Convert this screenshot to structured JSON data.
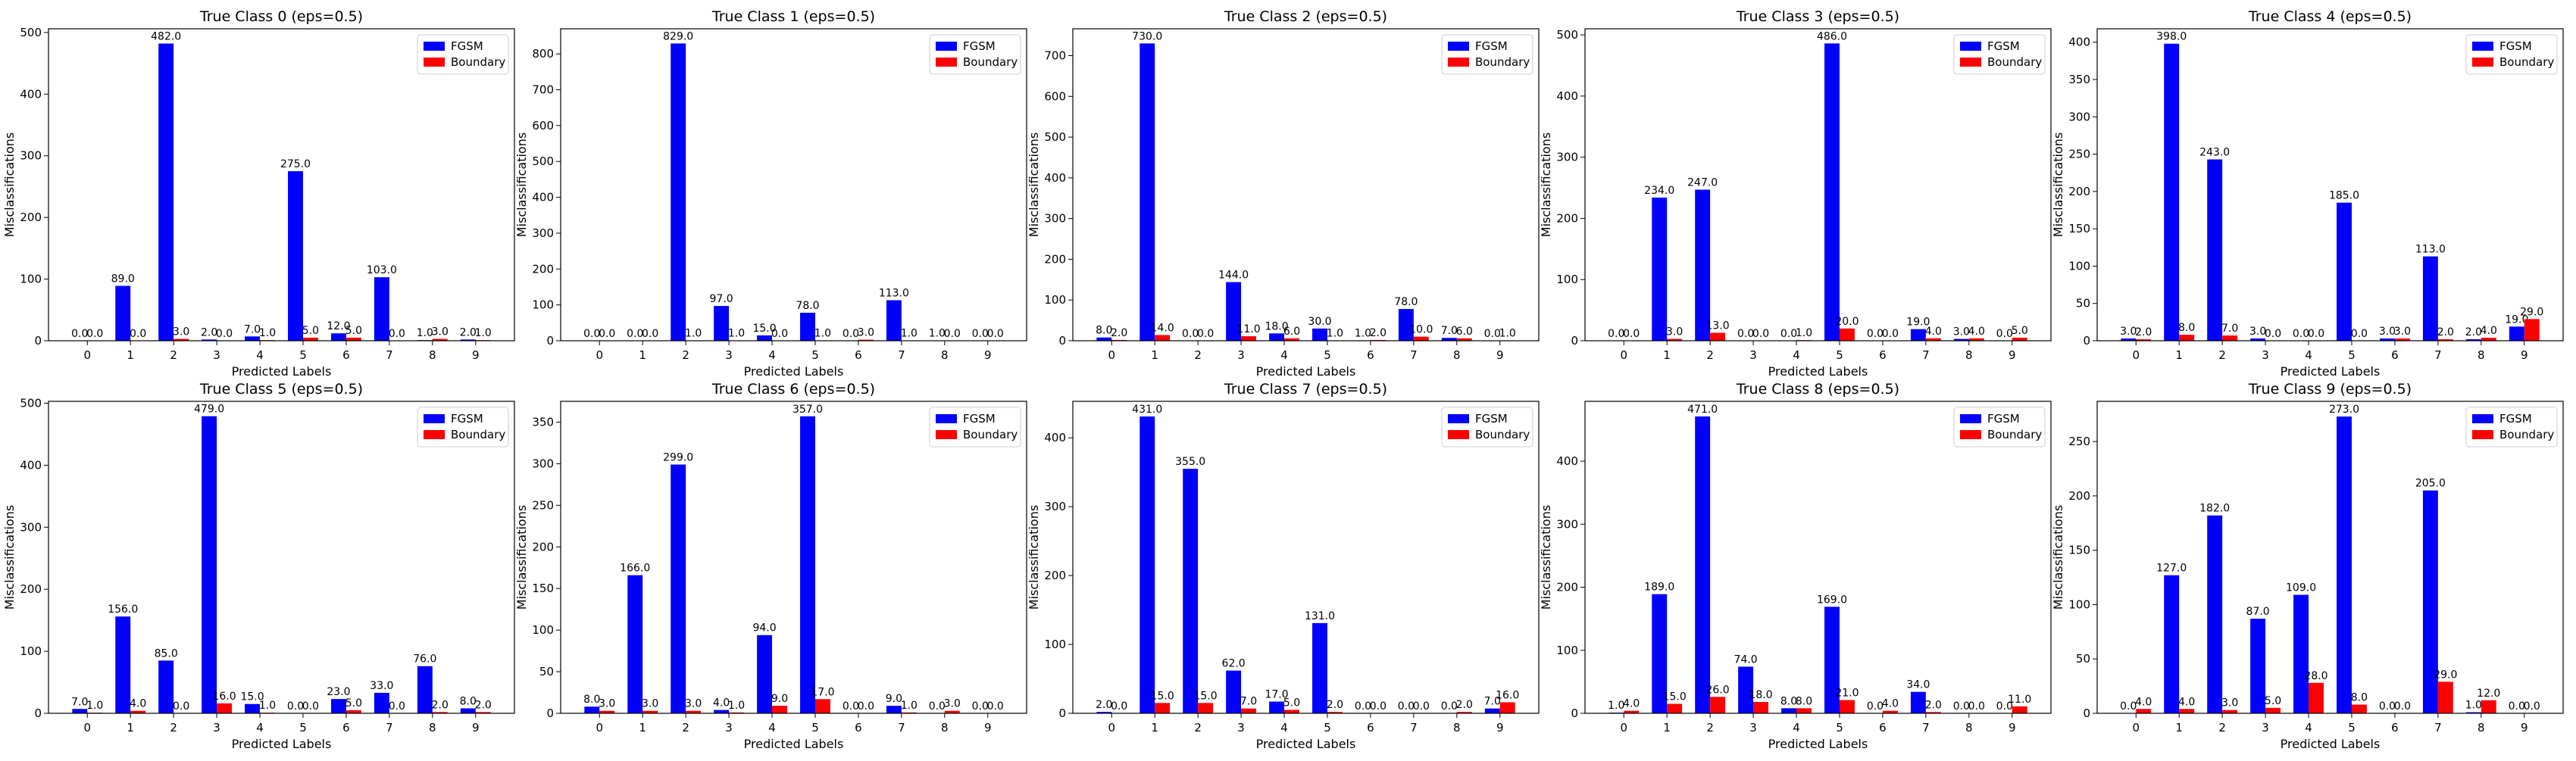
{
  "figure": {
    "colors": {
      "fgsm": "#0000ff",
      "boundary": "#ff0000"
    }
  },
  "chart_data": [
    {
      "type": "bar",
      "title": "True Class 0 (eps=0.5)",
      "xlabel": "Predicted Labels",
      "ylabel": "Misclassifications",
      "categories": [
        "0",
        "1",
        "2",
        "3",
        "4",
        "5",
        "6",
        "7",
        "8",
        "9"
      ],
      "series": [
        {
          "name": "FGSM",
          "values": [
            0,
            89,
            482,
            2,
            7,
            275,
            12,
            103,
            1,
            2
          ]
        },
        {
          "name": "Boundary",
          "values": [
            0,
            0,
            3,
            0,
            1,
            5,
            5,
            0,
            3,
            1
          ]
        }
      ],
      "ylim": [
        0,
        506
      ],
      "yticks": [
        0,
        100,
        200,
        300,
        400,
        500
      ],
      "legend": "top-right"
    },
    {
      "type": "bar",
      "title": "True Class 1 (eps=0.5)",
      "xlabel": "Predicted Labels",
      "ylabel": "Misclassifications",
      "categories": [
        "0",
        "1",
        "2",
        "3",
        "4",
        "5",
        "6",
        "7",
        "8",
        "9"
      ],
      "series": [
        {
          "name": "FGSM",
          "values": [
            0,
            0,
            829,
            97,
            15,
            78,
            0,
            113,
            1,
            0
          ]
        },
        {
          "name": "Boundary",
          "values": [
            0,
            0,
            1,
            1,
            0,
            1,
            3,
            1,
            0,
            0
          ]
        }
      ],
      "ylim": [
        0,
        870
      ],
      "yticks": [
        0,
        100,
        200,
        300,
        400,
        500,
        600,
        700,
        800
      ],
      "legend": "top-right"
    },
    {
      "type": "bar",
      "title": "True Class 2 (eps=0.5)",
      "xlabel": "Predicted Labels",
      "ylabel": "Misclassifications",
      "categories": [
        "0",
        "1",
        "2",
        "3",
        "4",
        "5",
        "6",
        "7",
        "8",
        "9"
      ],
      "series": [
        {
          "name": "FGSM",
          "values": [
            8,
            730,
            0,
            144,
            18,
            30,
            1,
            78,
            7,
            0
          ]
        },
        {
          "name": "Boundary",
          "values": [
            2,
            14,
            0,
            11,
            6,
            1,
            2,
            10,
            6,
            1
          ]
        }
      ],
      "ylim": [
        0,
        766
      ],
      "yticks": [
        0,
        100,
        200,
        300,
        400,
        500,
        600,
        700
      ],
      "legend": "top-right"
    },
    {
      "type": "bar",
      "title": "True Class 3 (eps=0.5)",
      "xlabel": "Predicted Labels",
      "ylabel": "Misclassifications",
      "categories": [
        "0",
        "1",
        "2",
        "3",
        "4",
        "5",
        "6",
        "7",
        "8",
        "9"
      ],
      "series": [
        {
          "name": "FGSM",
          "values": [
            0,
            234,
            247,
            0,
            0,
            486,
            0,
            19,
            3,
            0
          ]
        },
        {
          "name": "Boundary",
          "values": [
            0,
            3,
            13,
            0,
            1,
            20,
            0,
            4,
            4,
            5
          ]
        }
      ],
      "ylim": [
        0,
        510
      ],
      "yticks": [
        0,
        100,
        200,
        300,
        400,
        500
      ],
      "legend": "top-right"
    },
    {
      "type": "bar",
      "title": "True Class 4 (eps=0.5)",
      "xlabel": "Predicted Labels",
      "ylabel": "Misclassifications",
      "categories": [
        "0",
        "1",
        "2",
        "3",
        "4",
        "5",
        "6",
        "7",
        "8",
        "9"
      ],
      "series": [
        {
          "name": "FGSM",
          "values": [
            3,
            398,
            243,
            3,
            0,
            185,
            3,
            113,
            2,
            19
          ]
        },
        {
          "name": "Boundary",
          "values": [
            2,
            8,
            7,
            0,
            0,
            0,
            3,
            2,
            4,
            29
          ]
        }
      ],
      "ylim": [
        0,
        418
      ],
      "yticks": [
        0,
        50,
        100,
        150,
        200,
        250,
        300,
        350,
        400
      ],
      "legend": "top-right"
    },
    {
      "type": "bar",
      "title": "True Class 5 (eps=0.5)",
      "xlabel": "Predicted Labels",
      "ylabel": "Misclassifications",
      "categories": [
        "0",
        "1",
        "2",
        "3",
        "4",
        "5",
        "6",
        "7",
        "8",
        "9"
      ],
      "series": [
        {
          "name": "FGSM",
          "values": [
            7,
            156,
            85,
            479,
            15,
            0,
            23,
            33,
            76,
            8
          ]
        },
        {
          "name": "Boundary",
          "values": [
            1,
            4,
            0,
            16,
            1,
            0,
            5,
            0,
            2,
            2
          ]
        }
      ],
      "ylim": [
        0,
        503
      ],
      "yticks": [
        0,
        100,
        200,
        300,
        400,
        500
      ],
      "legend": "top-right"
    },
    {
      "type": "bar",
      "title": "True Class 6 (eps=0.5)",
      "xlabel": "Predicted Labels",
      "ylabel": "Misclassifications",
      "categories": [
        "0",
        "1",
        "2",
        "3",
        "4",
        "5",
        "6",
        "7",
        "8",
        "9"
      ],
      "series": [
        {
          "name": "FGSM",
          "values": [
            8,
            166,
            299,
            4,
            94,
            357,
            0,
            9,
            0,
            0
          ]
        },
        {
          "name": "Boundary",
          "values": [
            3,
            3,
            3,
            1,
            9,
            17,
            0,
            1,
            3,
            0
          ]
        }
      ],
      "ylim": [
        0,
        375
      ],
      "yticks": [
        0,
        50,
        100,
        150,
        200,
        250,
        300,
        350
      ],
      "legend": "top-right"
    },
    {
      "type": "bar",
      "title": "True Class 7 (eps=0.5)",
      "xlabel": "Predicted Labels",
      "ylabel": "Misclassifications",
      "categories": [
        "0",
        "1",
        "2",
        "3",
        "4",
        "5",
        "6",
        "7",
        "8",
        "9"
      ],
      "series": [
        {
          "name": "FGSM",
          "values": [
            2,
            431,
            355,
            62,
            17,
            131,
            0,
            0,
            0,
            7
          ]
        },
        {
          "name": "Boundary",
          "values": [
            0,
            15,
            15,
            7,
            5,
            2,
            0,
            0,
            2,
            16
          ]
        }
      ],
      "ylim": [
        0,
        453
      ],
      "yticks": [
        0,
        100,
        200,
        300,
        400
      ],
      "legend": "top-right"
    },
    {
      "type": "bar",
      "title": "True Class 8 (eps=0.5)",
      "xlabel": "Predicted Labels",
      "ylabel": "Misclassifications",
      "categories": [
        "0",
        "1",
        "2",
        "3",
        "4",
        "5",
        "6",
        "7",
        "8",
        "9"
      ],
      "series": [
        {
          "name": "FGSM",
          "values": [
            1,
            189,
            471,
            74,
            8,
            169,
            0,
            34,
            0,
            0
          ]
        },
        {
          "name": "Boundary",
          "values": [
            4,
            15,
            26,
            18,
            8,
            21,
            4,
            2,
            0,
            11
          ]
        }
      ],
      "ylim": [
        0,
        495
      ],
      "yticks": [
        0,
        100,
        200,
        300,
        400
      ],
      "legend": "top-right"
    },
    {
      "type": "bar",
      "title": "True Class 9 (eps=0.5)",
      "xlabel": "Predicted Labels",
      "ylabel": "Misclassifications",
      "categories": [
        "0",
        "1",
        "2",
        "3",
        "4",
        "5",
        "6",
        "7",
        "8",
        "9"
      ],
      "series": [
        {
          "name": "FGSM",
          "values": [
            0,
            127,
            182,
            87,
            109,
            273,
            0,
            205,
            1,
            0
          ]
        },
        {
          "name": "Boundary",
          "values": [
            4,
            4,
            3,
            5,
            28,
            8,
            0,
            29,
            12,
            0
          ]
        }
      ],
      "ylim": [
        0,
        287
      ],
      "yticks": [
        0,
        50,
        100,
        150,
        200,
        250
      ],
      "legend": "top-right"
    }
  ]
}
